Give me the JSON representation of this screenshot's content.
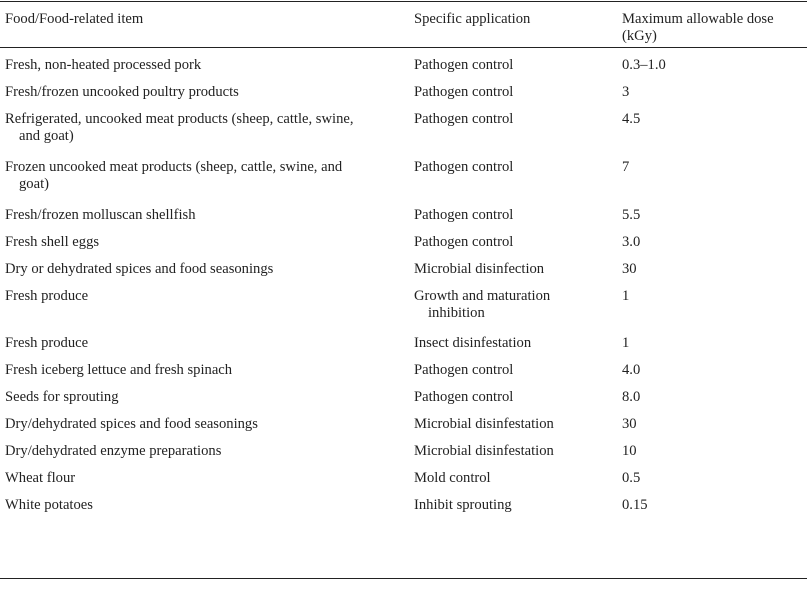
{
  "table": {
    "headers": {
      "item": "Food/Food-related item",
      "application": "Specific application",
      "dose": "Maximum allowable dose (kGy)"
    },
    "rows": [
      {
        "item": "Fresh, non-heated processed pork",
        "application": "Pathogen control",
        "dose": "0.3–1.0"
      },
      {
        "item": "Fresh/frozen uncooked poultry products",
        "application": "Pathogen control",
        "dose": "3"
      },
      {
        "item": "Refrigerated, uncooked meat products (sheep, cattle, swine, and goat)",
        "application": "Pathogen control",
        "dose": "4.5"
      },
      {
        "item": "Frozen uncooked meat products (sheep, cattle, swine, and goat)",
        "application": "Pathogen control",
        "dose": "7"
      },
      {
        "item": "Fresh/frozen molluscan shellfish",
        "application": "Pathogen control",
        "dose": "5.5"
      },
      {
        "item": "Fresh shell eggs",
        "application": "Pathogen control",
        "dose": "3.0"
      },
      {
        "item": "Dry or dehydrated spices and food seasonings",
        "application": "Microbial disinfection",
        "dose": "30"
      },
      {
        "item": "Fresh produce",
        "application": "Growth and maturation inhibition",
        "dose": "1"
      },
      {
        "item": "Fresh produce",
        "application": "Insect disinfestation",
        "dose": "1"
      },
      {
        "item": "Fresh iceberg lettuce and fresh spinach",
        "application": "Pathogen control",
        "dose": "4.0"
      },
      {
        "item": "Seeds for sprouting",
        "application": "Pathogen control",
        "dose": "8.0"
      },
      {
        "item": "Dry/dehydrated spices and food seasonings",
        "application": "Microbial disinfestation",
        "dose": "30"
      },
      {
        "item": "Dry/dehydrated enzyme preparations",
        "application": "Microbial disinfestation",
        "dose": "10"
      },
      {
        "item": "Wheat flour",
        "application": "Mold control",
        "dose": "0.5"
      },
      {
        "item": "White potatoes",
        "application": "Inhibit sprouting",
        "dose": "0.15"
      }
    ]
  }
}
